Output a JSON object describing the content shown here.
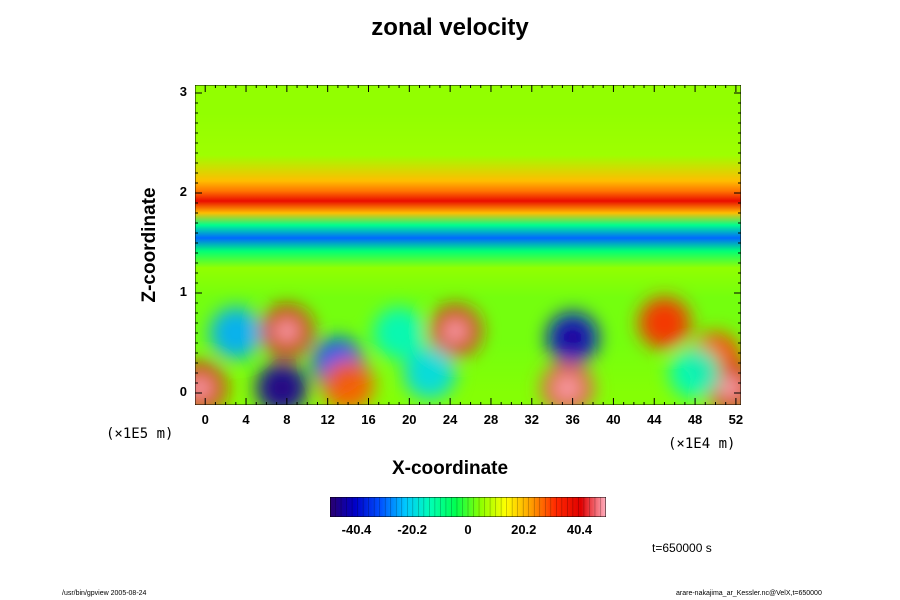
{
  "chart_data": {
    "type": "heatmap",
    "title": "zonal velocity",
    "xlabel": "X-coordinate",
    "ylabel": "Z-coordinate",
    "x_scale_note": "(×1E4 m)",
    "y_scale_note": "(×1E5 m)",
    "xlim": [
      -1,
      52.5
    ],
    "ylim": [
      -0.12,
      3.08
    ],
    "x_ticks": [
      "0",
      "4",
      "8",
      "12",
      "16",
      "20",
      "24",
      "28",
      "32",
      "36",
      "40",
      "44",
      "48",
      "52"
    ],
    "y_ticks": [
      "0",
      "1",
      "2",
      "3"
    ],
    "colorbar": {
      "range": [
        -50,
        50
      ],
      "tick_labels": [
        "-40.4",
        "-20.2",
        "0",
        "20.2",
        "40.4"
      ],
      "tick_values": [
        -40.4,
        -20.2,
        0,
        20.2,
        40.4
      ],
      "colors": [
        "#2a006e",
        "#0000c8",
        "#0050ff",
        "#00c8ff",
        "#00ffb4",
        "#00ff50",
        "#8cff00",
        "#ffff00",
        "#ffa000",
        "#ff2800",
        "#e00000",
        "#ffb0c0"
      ]
    },
    "bands": [
      {
        "z": 2.8,
        "value": 5
      },
      {
        "z": 2.38,
        "value": 6
      },
      {
        "z": 2.12,
        "value": 20
      },
      {
        "z": 2.02,
        "value": 26
      },
      {
        "z": 1.92,
        "value": 38
      },
      {
        "z": 1.8,
        "value": 20
      },
      {
        "z": 1.68,
        "value": -10
      },
      {
        "z": 1.55,
        "value": -30
      },
      {
        "z": 1.42,
        "value": -8
      },
      {
        "z": 1.25,
        "value": 5
      },
      {
        "z": 0.95,
        "value": 3
      },
      {
        "z": 0.5,
        "value": 3
      },
      {
        "z": 0.0,
        "value": 4
      }
    ],
    "features": [
      {
        "x": 8,
        "z": 0.62,
        "value": 40
      },
      {
        "x": 13,
        "z": 0.3,
        "value": -32
      },
      {
        "x": 7.5,
        "z": 0.05,
        "value": -45
      },
      {
        "x": 24.5,
        "z": 0.62,
        "value": 42
      },
      {
        "x": 36,
        "z": 0.55,
        "value": -40
      },
      {
        "x": 35.5,
        "z": 0.05,
        "value": 45
      },
      {
        "x": 45,
        "z": 0.7,
        "value": 32
      },
      {
        "x": 50,
        "z": 0.35,
        "value": 30
      },
      {
        "x": -0.5,
        "z": 0.05,
        "value": 40
      },
      {
        "x": 51.5,
        "z": 0.05,
        "value": 40
      },
      {
        "x": 22,
        "z": 0.2,
        "value": -20
      },
      {
        "x": 3,
        "z": 0.6,
        "value": -25
      },
      {
        "x": 19,
        "z": 0.6,
        "value": -15
      },
      {
        "x": 48,
        "z": 0.2,
        "value": -15
      },
      {
        "x": 14,
        "z": 0.08,
        "value": 28
      }
    ]
  },
  "time_label": "t=650000 s",
  "footer_left": "/usr/bin/gpview 2005-08-24",
  "footer_right": "arare-nakajima_ar_Kessler.nc@VelX,t=650000"
}
